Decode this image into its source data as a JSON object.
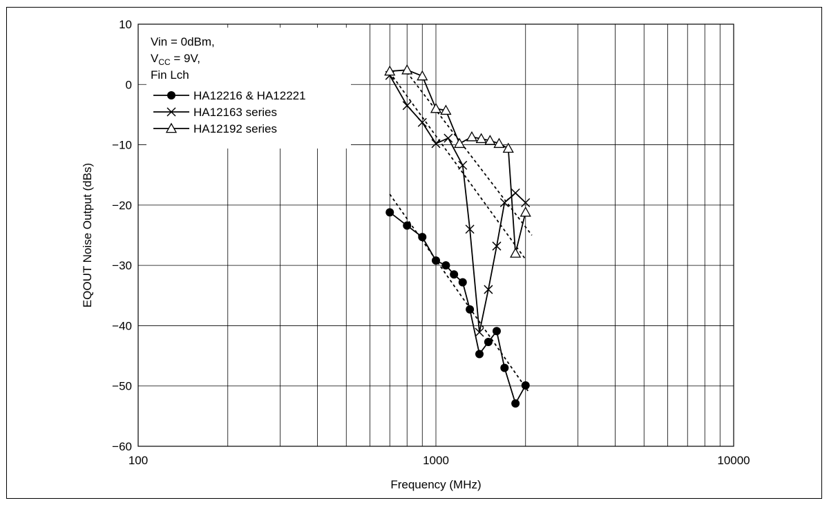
{
  "chart_data": {
    "type": "line",
    "xlabel": "Frequency  (MHz)",
    "ylabel": "EQOUT Noise Output  (dBs)",
    "xscale": "log",
    "xlim": [
      100,
      10000
    ],
    "ylim": [
      -60,
      10
    ],
    "grid": true,
    "x_ticks": [
      100,
      1000,
      10000
    ],
    "x_tick_labels": [
      "100",
      "1000",
      "10000"
    ],
    "y_ticks": [
      10,
      0,
      -10,
      -20,
      -30,
      -40,
      -50,
      -60
    ],
    "y_tick_labels": [
      "10",
      "0",
      "−10",
      "−20",
      "−30",
      "−40",
      "−50",
      "−60"
    ],
    "annotation": {
      "line1": "Vin = 0dBm,",
      "line2_main": "V",
      "line2_sub": "CC",
      "line2_rest": " = 9V,",
      "line3": "Fin Lch"
    },
    "legend_placement": "top-left",
    "series": [
      {
        "name": "HA12216 & HA12221",
        "marker": "filled-circle",
        "x": [
          700,
          800,
          900,
          1000,
          1080,
          1150,
          1230,
          1300,
          1400,
          1500,
          1600,
          1700,
          1850,
          2000
        ],
        "y": [
          -21.2,
          -23.4,
          -25.3,
          -29.2,
          -30.0,
          -31.5,
          -32.8,
          -37.3,
          -44.7,
          -42.7,
          -40.9,
          -47.0,
          -52.9,
          -49.9
        ]
      },
      {
        "name": "HA12163 series",
        "marker": "cross",
        "x": [
          700,
          800,
          900,
          1000,
          1100,
          1230,
          1300,
          1400,
          1500,
          1600,
          1700,
          1850,
          2000
        ],
        "y": [
          1.5,
          -3.5,
          -6.3,
          -9.8,
          -8.9,
          -13.4,
          -24.0,
          -41.1,
          -34.0,
          -26.8,
          -19.6,
          -18.0,
          -19.6
        ]
      },
      {
        "name": "HA12192 series",
        "marker": "open-triangle",
        "x": [
          700,
          800,
          900,
          1000,
          1080,
          1200,
          1320,
          1420,
          1520,
          1630,
          1750,
          1850,
          2000
        ],
        "y": [
          2.2,
          2.4,
          1.4,
          -4.0,
          -4.3,
          -9.8,
          -8.7,
          -9.0,
          -9.3,
          -9.8,
          -10.6,
          -28.0,
          -21.2
        ]
      }
    ],
    "trendlines": [
      {
        "x": [
          700,
          2050
        ],
        "y": [
          -18.2,
          -51.0
        ]
      },
      {
        "x": [
          700,
          2000
        ],
        "y": [
          2.0,
          -29.0
        ]
      },
      {
        "x": [
          800,
          2100
        ],
        "y": [
          2.0,
          -25.0
        ]
      }
    ]
  }
}
